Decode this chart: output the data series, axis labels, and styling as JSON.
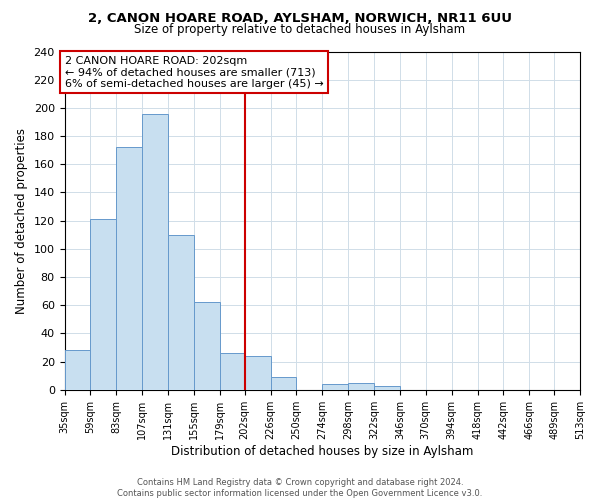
{
  "title": "2, CANON HOARE ROAD, AYLSHAM, NORWICH, NR11 6UU",
  "subtitle": "Size of property relative to detached houses in Aylsham",
  "xlabel": "Distribution of detached houses by size in Aylsham",
  "ylabel": "Number of detached properties",
  "bin_edges": [
    35,
    59,
    83,
    107,
    131,
    155,
    179,
    202,
    226,
    250,
    274,
    298,
    322,
    346,
    370,
    394,
    418,
    442,
    466,
    489,
    513
  ],
  "bar_heights": [
    28,
    121,
    172,
    196,
    110,
    62,
    26,
    24,
    9,
    0,
    4,
    5,
    3,
    0,
    0,
    0,
    0,
    0,
    0,
    0
  ],
  "bar_color": "#c8dff0",
  "bar_edge_color": "#6699cc",
  "vline_x": 202,
  "vline_color": "#cc0000",
  "annotation_text": "2 CANON HOARE ROAD: 202sqm\n← 94% of detached houses are smaller (713)\n6% of semi-detached houses are larger (45) →",
  "annotation_box_color": "#ffffff",
  "annotation_box_edge_color": "#cc0000",
  "ylim": [
    0,
    240
  ],
  "yticks": [
    0,
    20,
    40,
    60,
    80,
    100,
    120,
    140,
    160,
    180,
    200,
    220,
    240
  ],
  "tick_labels": [
    "35sqm",
    "59sqm",
    "83sqm",
    "107sqm",
    "131sqm",
    "155sqm",
    "179sqm",
    "202sqm",
    "226sqm",
    "250sqm",
    "274sqm",
    "298sqm",
    "322sqm",
    "346sqm",
    "370sqm",
    "394sqm",
    "418sqm",
    "442sqm",
    "466sqm",
    "489sqm",
    "513sqm"
  ],
  "footer_line1": "Contains HM Land Registry data © Crown copyright and database right 2024.",
  "footer_line2": "Contains public sector information licensed under the Open Government Licence v3.0.",
  "background_color": "#ffffff",
  "grid_color": "#d0dde8"
}
